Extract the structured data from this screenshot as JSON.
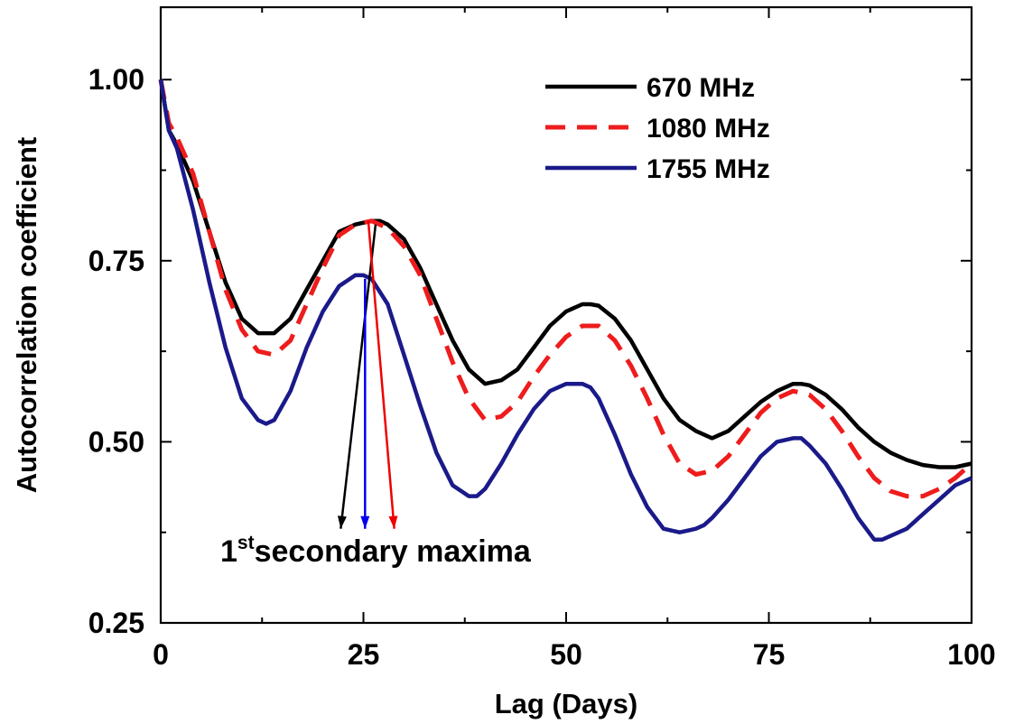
{
  "chart_data": {
    "type": "line",
    "xlabel": "Lag (Days)",
    "ylabel": "Autocorrelation coefficient",
    "xlim": [
      0,
      100
    ],
    "ylim": [
      0.25,
      1.1
    ],
    "x_ticks": [
      0,
      25,
      50,
      75,
      100
    ],
    "x_tick_labels": [
      "0",
      "25",
      "50",
      "75",
      "100"
    ],
    "y_ticks": [
      0.25,
      0.5,
      0.75,
      1.0
    ],
    "y_tick_labels": [
      "0.25",
      "0.50",
      "0.75",
      "1.00"
    ],
    "grid": false,
    "legend_position": "top-right",
    "series": [
      {
        "name": "670 MHz",
        "color": "#000000",
        "style": "solid",
        "x": [
          0,
          1,
          2,
          4,
          6,
          8,
          10,
          12,
          14,
          16,
          18,
          20,
          22,
          24,
          26,
          27,
          28,
          30,
          32,
          34,
          36,
          38,
          40,
          42,
          44,
          46,
          48,
          50,
          52,
          53,
          54,
          56,
          58,
          60,
          62,
          64,
          66,
          68,
          70,
          72,
          74,
          76,
          78,
          79,
          80,
          82,
          84,
          86,
          88,
          90,
          92,
          94,
          96,
          98,
          100
        ],
        "y": [
          1.0,
          0.93,
          0.91,
          0.86,
          0.79,
          0.72,
          0.67,
          0.65,
          0.65,
          0.67,
          0.71,
          0.75,
          0.79,
          0.8,
          0.805,
          0.805,
          0.8,
          0.78,
          0.74,
          0.69,
          0.64,
          0.6,
          0.58,
          0.585,
          0.6,
          0.63,
          0.66,
          0.68,
          0.69,
          0.69,
          0.688,
          0.67,
          0.64,
          0.6,
          0.56,
          0.53,
          0.515,
          0.505,
          0.515,
          0.535,
          0.555,
          0.57,
          0.58,
          0.58,
          0.578,
          0.565,
          0.545,
          0.52,
          0.5,
          0.485,
          0.475,
          0.468,
          0.465,
          0.465,
          0.47
        ]
      },
      {
        "name": "1080 MHz",
        "color": "#ee1c1c",
        "style": "dashed",
        "x": [
          0,
          1,
          2,
          4,
          6,
          8,
          10,
          12,
          14,
          16,
          18,
          20,
          22,
          24,
          26,
          28,
          30,
          32,
          34,
          36,
          38,
          40,
          42,
          44,
          46,
          48,
          50,
          52,
          54,
          56,
          58,
          60,
          62,
          64,
          66,
          68,
          70,
          72,
          74,
          76,
          78,
          80,
          82,
          84,
          86,
          88,
          90,
          92,
          94,
          96,
          98,
          100
        ],
        "y": [
          1.0,
          0.94,
          0.92,
          0.87,
          0.79,
          0.71,
          0.655,
          0.625,
          0.62,
          0.64,
          0.69,
          0.74,
          0.785,
          0.8,
          0.805,
          0.795,
          0.77,
          0.73,
          0.67,
          0.61,
          0.56,
          0.53,
          0.535,
          0.555,
          0.59,
          0.62,
          0.645,
          0.66,
          0.66,
          0.64,
          0.605,
          0.56,
          0.51,
          0.47,
          0.455,
          0.46,
          0.48,
          0.51,
          0.54,
          0.56,
          0.57,
          0.565,
          0.545,
          0.515,
          0.48,
          0.45,
          0.432,
          0.425,
          0.425,
          0.435,
          0.45,
          0.47
        ]
      },
      {
        "name": "1755 MHz",
        "color": "#1a1a8a",
        "style": "solid",
        "x": [
          0,
          1,
          2,
          4,
          6,
          8,
          10,
          12,
          13,
          14,
          16,
          18,
          20,
          22,
          24,
          25,
          26,
          28,
          30,
          32,
          34,
          36,
          38,
          39,
          40,
          42,
          44,
          46,
          48,
          50,
          52,
          53,
          54,
          56,
          58,
          60,
          62,
          64,
          66,
          67,
          68,
          70,
          72,
          74,
          76,
          78,
          79,
          80,
          82,
          84,
          86,
          88,
          89,
          90,
          92,
          94,
          96,
          98,
          100
        ],
        "y": [
          1.0,
          0.93,
          0.905,
          0.82,
          0.72,
          0.63,
          0.56,
          0.53,
          0.525,
          0.53,
          0.57,
          0.63,
          0.68,
          0.715,
          0.73,
          0.73,
          0.725,
          0.69,
          0.62,
          0.55,
          0.485,
          0.44,
          0.425,
          0.425,
          0.435,
          0.47,
          0.51,
          0.545,
          0.57,
          0.58,
          0.58,
          0.575,
          0.56,
          0.51,
          0.455,
          0.41,
          0.38,
          0.375,
          0.38,
          0.385,
          0.395,
          0.42,
          0.45,
          0.48,
          0.5,
          0.505,
          0.505,
          0.495,
          0.47,
          0.435,
          0.395,
          0.365,
          0.365,
          0.37,
          0.38,
          0.4,
          0.42,
          0.44,
          0.45
        ]
      }
    ],
    "annotations": [
      {
        "text": "1",
        "superscript": "st",
        "text_after": "secondary maxima",
        "arrows": [
          {
            "from": [
              26.5,
              0.8
            ],
            "to": [
              22.2,
              0.38
            ],
            "color": "#000000"
          },
          {
            "from": [
              25.2,
              0.725
            ],
            "to": [
              25.2,
              0.38
            ],
            "color": "#0000ee"
          },
          {
            "from": [
              25.6,
              0.805
            ],
            "to": [
              28.8,
              0.38
            ],
            "color": "#ee0000"
          }
        ]
      }
    ]
  }
}
